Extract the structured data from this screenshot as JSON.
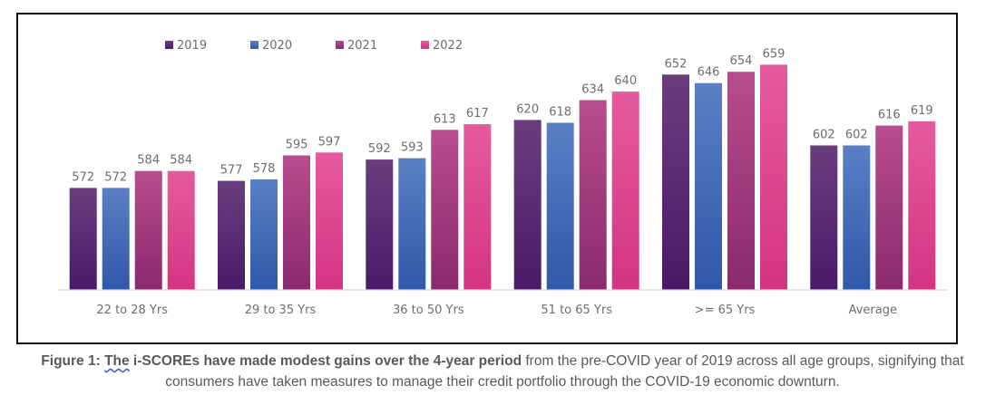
{
  "chart_data": {
    "type": "bar",
    "title": "",
    "xlabel": "",
    "ylabel": "",
    "categories": [
      "22 to 28 Yrs",
      "29 to 35 Yrs",
      "36 to 50 Yrs",
      "51 to 65 Yrs",
      ">= 65 Yrs",
      "Average"
    ],
    "series": [
      {
        "name": "2019",
        "values": [
          572,
          577,
          592,
          620,
          652,
          602
        ],
        "color_top": "#6a3d7e",
        "color_bottom": "#4a1a68"
      },
      {
        "name": "2020",
        "values": [
          572,
          578,
          593,
          618,
          646,
          602
        ],
        "color_top": "#5a7fc4",
        "color_bottom": "#3058a8"
      },
      {
        "name": "2021",
        "values": [
          584,
          595,
          613,
          634,
          654,
          616
        ],
        "color_top": "#b84c8e",
        "color_bottom": "#8a2a6e"
      },
      {
        "name": "2022",
        "values": [
          584,
          597,
          617,
          640,
          659,
          619
        ],
        "color_top": "#e65a9e",
        "color_bottom": "#d43482"
      }
    ],
    "legend": {
      "placement": "top-left"
    },
    "grid": false,
    "ylim": [
      500,
      665
    ],
    "data_labels": true
  },
  "caption": {
    "bold_prefix": "Figure 1: ",
    "bold_squiggle": "The",
    "bold_rest": " i-SCOREs have made modest gains over the 4-year period",
    "normal": " from the pre-COVID year of 2019 across all age groups, signifying that consumers have taken measures to manage their credit portfolio through the COVID-19 economic downturn."
  }
}
